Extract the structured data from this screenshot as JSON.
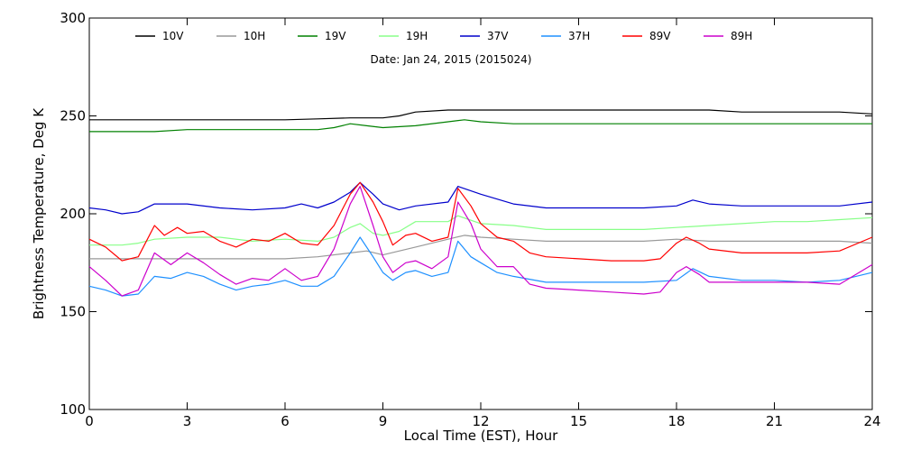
{
  "chart_data": {
    "type": "line",
    "title": "",
    "subtitle": "Date: Jan 24, 2015 (2015024)",
    "xlabel": "Local Time (EST), Hour",
    "ylabel": "Brightness Temperature, Deg K",
    "xlim": [
      0,
      24
    ],
    "ylim": [
      100,
      300
    ],
    "xticks": [
      0,
      3,
      6,
      9,
      12,
      15,
      18,
      21,
      24
    ],
    "yticks": [
      100,
      150,
      200,
      250,
      300
    ],
    "grid": false,
    "legend_position": "top",
    "series": [
      {
        "name": "10V",
        "color": "#000000",
        "points": [
          [
            0,
            248
          ],
          [
            1,
            248
          ],
          [
            2,
            248
          ],
          [
            3,
            248
          ],
          [
            4,
            248
          ],
          [
            5,
            248
          ],
          [
            6,
            248
          ],
          [
            7,
            248.5
          ],
          [
            8,
            249
          ],
          [
            9,
            249
          ],
          [
            9.5,
            250
          ],
          [
            10,
            252
          ],
          [
            11,
            253
          ],
          [
            12,
            253
          ],
          [
            13,
            253
          ],
          [
            14,
            253
          ],
          [
            15,
            253
          ],
          [
            16,
            253
          ],
          [
            17,
            253
          ],
          [
            18,
            253
          ],
          [
            19,
            253
          ],
          [
            20,
            252
          ],
          [
            21,
            252
          ],
          [
            22,
            252
          ],
          [
            23,
            252
          ],
          [
            24,
            251
          ]
        ]
      },
      {
        "name": "10H",
        "color": "#999999",
        "points": [
          [
            0,
            177
          ],
          [
            1,
            177
          ],
          [
            2,
            177
          ],
          [
            3,
            177
          ],
          [
            4,
            177
          ],
          [
            5,
            177
          ],
          [
            6,
            177
          ],
          [
            7,
            178
          ],
          [
            8,
            180
          ],
          [
            8.5,
            181
          ],
          [
            9,
            179
          ],
          [
            10,
            183
          ],
          [
            11,
            187
          ],
          [
            11.5,
            189
          ],
          [
            12,
            188
          ],
          [
            13,
            187
          ],
          [
            14,
            186
          ],
          [
            15,
            186
          ],
          [
            16,
            186
          ],
          [
            17,
            186
          ],
          [
            18,
            187
          ],
          [
            19,
            186
          ],
          [
            20,
            186
          ],
          [
            21,
            186
          ],
          [
            22,
            186
          ],
          [
            23,
            186
          ],
          [
            24,
            185
          ]
        ]
      },
      {
        "name": "19V",
        "color": "#008000",
        "points": [
          [
            0,
            242
          ],
          [
            1,
            242
          ],
          [
            2,
            242
          ],
          [
            3,
            243
          ],
          [
            4,
            243
          ],
          [
            5,
            243
          ],
          [
            6,
            243
          ],
          [
            7,
            243
          ],
          [
            7.5,
            244
          ],
          [
            8,
            246
          ],
          [
            8.5,
            245
          ],
          [
            9,
            244
          ],
          [
            10,
            245
          ],
          [
            11,
            247
          ],
          [
            11.5,
            248
          ],
          [
            12,
            247
          ],
          [
            13,
            246
          ],
          [
            14,
            246
          ],
          [
            15,
            246
          ],
          [
            16,
            246
          ],
          [
            17,
            246
          ],
          [
            18,
            246
          ],
          [
            19,
            246
          ],
          [
            20,
            246
          ],
          [
            21,
            246
          ],
          [
            22,
            246
          ],
          [
            23,
            246
          ],
          [
            24,
            246
          ]
        ]
      },
      {
        "name": "19H",
        "color": "#88ff88",
        "points": [
          [
            0,
            184
          ],
          [
            1,
            184
          ],
          [
            1.5,
            185
          ],
          [
            2,
            187
          ],
          [
            3,
            188
          ],
          [
            4,
            188
          ],
          [
            5,
            186
          ],
          [
            6,
            187
          ],
          [
            7,
            186
          ],
          [
            7.5,
            188
          ],
          [
            8,
            193
          ],
          [
            8.3,
            195
          ],
          [
            8.7,
            190
          ],
          [
            9,
            189
          ],
          [
            9.5,
            191
          ],
          [
            10,
            196
          ],
          [
            11,
            196
          ],
          [
            11.3,
            199
          ],
          [
            12,
            195
          ],
          [
            13,
            194
          ],
          [
            14,
            192
          ],
          [
            15,
            192
          ],
          [
            16,
            192
          ],
          [
            17,
            192
          ],
          [
            18,
            193
          ],
          [
            19,
            194
          ],
          [
            20,
            195
          ],
          [
            21,
            196
          ],
          [
            22,
            196
          ],
          [
            23,
            197
          ],
          [
            24,
            198
          ]
        ]
      },
      {
        "name": "37V",
        "color": "#0000cc",
        "points": [
          [
            0,
            203
          ],
          [
            0.5,
            202
          ],
          [
            1,
            200
          ],
          [
            1.5,
            201
          ],
          [
            2,
            205
          ],
          [
            3,
            205
          ],
          [
            4,
            203
          ],
          [
            5,
            202
          ],
          [
            6,
            203
          ],
          [
            6.5,
            205
          ],
          [
            7,
            203
          ],
          [
            7.5,
            206
          ],
          [
            8,
            211
          ],
          [
            8.3,
            216
          ],
          [
            8.7,
            210
          ],
          [
            9,
            205
          ],
          [
            9.5,
            202
          ],
          [
            10,
            204
          ],
          [
            11,
            206
          ],
          [
            11.3,
            214
          ],
          [
            12,
            210
          ],
          [
            13,
            205
          ],
          [
            14,
            203
          ],
          [
            15,
            203
          ],
          [
            16,
            203
          ],
          [
            17,
            203
          ],
          [
            18,
            204
          ],
          [
            18.5,
            207
          ],
          [
            19,
            205
          ],
          [
            20,
            204
          ],
          [
            21,
            204
          ],
          [
            22,
            204
          ],
          [
            23,
            204
          ],
          [
            24,
            206
          ]
        ]
      },
      {
        "name": "37H",
        "color": "#1e90ff",
        "points": [
          [
            0,
            163
          ],
          [
            0.5,
            161
          ],
          [
            1,
            158
          ],
          [
            1.5,
            159
          ],
          [
            2,
            168
          ],
          [
            2.5,
            167
          ],
          [
            3,
            170
          ],
          [
            3.5,
            168
          ],
          [
            4,
            164
          ],
          [
            4.5,
            161
          ],
          [
            5,
            163
          ],
          [
            5.5,
            164
          ],
          [
            6,
            166
          ],
          [
            6.5,
            163
          ],
          [
            7,
            163
          ],
          [
            7.5,
            168
          ],
          [
            8,
            180
          ],
          [
            8.3,
            188
          ],
          [
            8.7,
            178
          ],
          [
            9,
            170
          ],
          [
            9.3,
            166
          ],
          [
            9.7,
            170
          ],
          [
            10,
            171
          ],
          [
            10.5,
            168
          ],
          [
            11,
            170
          ],
          [
            11.3,
            186
          ],
          [
            11.7,
            178
          ],
          [
            12,
            175
          ],
          [
            12.5,
            170
          ],
          [
            13,
            168
          ],
          [
            14,
            165
          ],
          [
            15,
            165
          ],
          [
            16,
            165
          ],
          [
            17,
            165
          ],
          [
            18,
            166
          ],
          [
            18.5,
            172
          ],
          [
            19,
            168
          ],
          [
            20,
            166
          ],
          [
            21,
            166
          ],
          [
            22,
            165
          ],
          [
            23,
            166
          ],
          [
            24,
            170
          ]
        ]
      },
      {
        "name": "89V",
        "color": "#ff0000",
        "points": [
          [
            0,
            187
          ],
          [
            0.5,
            183
          ],
          [
            1,
            176
          ],
          [
            1.5,
            178
          ],
          [
            2,
            194
          ],
          [
            2.3,
            189
          ],
          [
            2.7,
            193
          ],
          [
            3,
            190
          ],
          [
            3.5,
            191
          ],
          [
            4,
            186
          ],
          [
            4.5,
            183
          ],
          [
            5,
            187
          ],
          [
            5.5,
            186
          ],
          [
            6,
            190
          ],
          [
            6.5,
            185
          ],
          [
            7,
            184
          ],
          [
            7.5,
            194
          ],
          [
            8,
            210
          ],
          [
            8.3,
            216
          ],
          [
            8.7,
            206
          ],
          [
            9,
            196
          ],
          [
            9.3,
            184
          ],
          [
            9.7,
            189
          ],
          [
            10,
            190
          ],
          [
            10.5,
            186
          ],
          [
            11,
            188
          ],
          [
            11.3,
            213
          ],
          [
            11.7,
            204
          ],
          [
            12,
            195
          ],
          [
            12.5,
            188
          ],
          [
            13,
            186
          ],
          [
            13.5,
            180
          ],
          [
            14,
            178
          ],
          [
            15,
            177
          ],
          [
            16,
            176
          ],
          [
            17,
            176
          ],
          [
            17.5,
            177
          ],
          [
            18,
            185
          ],
          [
            18.3,
            188
          ],
          [
            18.7,
            185
          ],
          [
            19,
            182
          ],
          [
            20,
            180
          ],
          [
            21,
            180
          ],
          [
            22,
            180
          ],
          [
            23,
            181
          ],
          [
            24,
            188
          ]
        ]
      },
      {
        "name": "89H",
        "color": "#cc00cc",
        "points": [
          [
            0,
            173
          ],
          [
            0.5,
            166
          ],
          [
            1,
            158
          ],
          [
            1.5,
            161
          ],
          [
            2,
            180
          ],
          [
            2.5,
            174
          ],
          [
            3,
            180
          ],
          [
            3.5,
            175
          ],
          [
            4,
            169
          ],
          [
            4.5,
            164
          ],
          [
            5,
            167
          ],
          [
            5.5,
            166
          ],
          [
            6,
            172
          ],
          [
            6.5,
            166
          ],
          [
            7,
            168
          ],
          [
            7.5,
            182
          ],
          [
            8,
            205
          ],
          [
            8.3,
            214
          ],
          [
            8.7,
            194
          ],
          [
            9,
            178
          ],
          [
            9.3,
            170
          ],
          [
            9.7,
            175
          ],
          [
            10,
            176
          ],
          [
            10.5,
            172
          ],
          [
            11,
            178
          ],
          [
            11.3,
            206
          ],
          [
            11.7,
            195
          ],
          [
            12,
            182
          ],
          [
            12.5,
            173
          ],
          [
            13,
            173
          ],
          [
            13.5,
            164
          ],
          [
            14,
            162
          ],
          [
            15,
            161
          ],
          [
            16,
            160
          ],
          [
            17,
            159
          ],
          [
            17.5,
            160
          ],
          [
            18,
            170
          ],
          [
            18.3,
            173
          ],
          [
            18.7,
            169
          ],
          [
            19,
            165
          ],
          [
            20,
            165
          ],
          [
            21,
            165
          ],
          [
            22,
            165
          ],
          [
            23,
            164
          ],
          [
            24,
            174
          ]
        ]
      }
    ]
  }
}
